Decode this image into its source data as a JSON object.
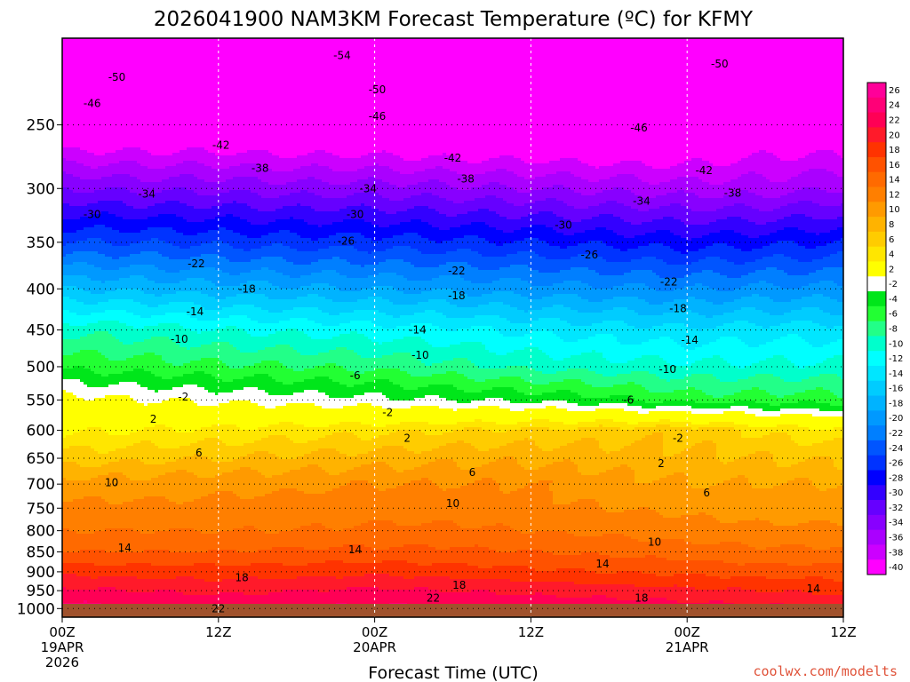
{
  "chart_data": {
    "type": "heatmap",
    "title": "2026041900 NAM3KM Forecast Temperature (ºC) for KFMY",
    "xlabel": "Forecast Time (UTC)",
    "ylabel": "",
    "credit": "coolwx.com/modelts",
    "x_range_hours": [
      0,
      60
    ],
    "y_range_hpa": [
      1025,
      195
    ],
    "x_ticks": [
      {
        "hour": 0,
        "lines": [
          "00Z",
          "19APR",
          "2026"
        ]
      },
      {
        "hour": 12,
        "lines": [
          "12Z"
        ]
      },
      {
        "hour": 24,
        "lines": [
          "00Z",
          "20APR"
        ]
      },
      {
        "hour": 36,
        "lines": [
          "12Z"
        ]
      },
      {
        "hour": 48,
        "lines": [
          "00Z",
          "21APR"
        ]
      },
      {
        "hour": 60,
        "lines": [
          "12Z"
        ]
      }
    ],
    "y_ticks": [
      250,
      300,
      350,
      400,
      450,
      500,
      550,
      600,
      650,
      700,
      750,
      800,
      850,
      900,
      950,
      1000
    ],
    "profile_pressure_hpa": [
      1015,
      1000,
      950,
      900,
      850,
      800,
      750,
      700,
      650,
      600,
      550,
      500,
      450,
      400,
      350,
      300,
      250,
      200
    ],
    "profile_times_hours": [
      0,
      6,
      12,
      18,
      24,
      30,
      36,
      42,
      48,
      54,
      60
    ],
    "temperature_c": [
      [
        23.0,
        23.0,
        20.5,
        17.5,
        14.0,
        12.0,
        10.5,
        9.0,
        5.0,
        1.5,
        -1.0,
        -6.5,
        -10.5,
        -18.0,
        -26.0,
        -34.0,
        -44.0,
        -52.0
      ],
      [
        22.5,
        22.0,
        20.0,
        17.0,
        14.0,
        12.0,
        10.5,
        9.0,
        5.5,
        2.0,
        -2.0,
        -7.0,
        -11.0,
        -18.5,
        -26.0,
        -34.5,
        -44.0,
        -52.5
      ],
      [
        22.0,
        21.5,
        19.5,
        17.0,
        14.0,
        12.0,
        10.5,
        9.5,
        6.0,
        2.5,
        -2.5,
        -7.5,
        -12.0,
        -19.0,
        -26.5,
        -34.5,
        -44.0,
        -53.0
      ],
      [
        22.5,
        22.0,
        20.0,
        17.0,
        14.5,
        12.0,
        11.0,
        9.5,
        6.5,
        3.0,
        -3.0,
        -8.0,
        -12.5,
        -19.5,
        -27.0,
        -35.0,
        -44.5,
        -53.0
      ],
      [
        23.0,
        22.5,
        20.5,
        17.5,
        14.5,
        12.5,
        11.0,
        10.0,
        7.0,
        3.5,
        -3.5,
        -8.5,
        -13.0,
        -20.0,
        -27.0,
        -35.0,
        -44.5,
        -53.0
      ],
      [
        22.5,
        22.0,
        20.0,
        17.0,
        14.5,
        12.5,
        11.0,
        10.0,
        7.5,
        4.0,
        -4.0,
        -9.5,
        -13.5,
        -20.5,
        -27.5,
        -35.5,
        -45.0,
        -53.5
      ],
      [
        22.0,
        21.5,
        19.5,
        16.5,
        14.0,
        12.0,
        10.5,
        10.0,
        7.5,
        4.5,
        -4.5,
        -10.5,
        -14.5,
        -21.0,
        -28.0,
        -36.0,
        -45.0,
        -53.5
      ],
      [
        22.5,
        21.5,
        19.0,
        16.0,
        13.5,
        11.5,
        10.0,
        9.0,
        7.0,
        5.0,
        -5.5,
        -11.0,
        -15.0,
        -21.5,
        -28.5,
        -36.5,
        -45.5,
        -53.0
      ],
      [
        22.0,
        21.0,
        18.5,
        15.5,
        13.0,
        11.0,
        9.5,
        8.0,
        6.5,
        5.5,
        -7.0,
        -11.5,
        -15.5,
        -22.0,
        -29.0,
        -37.0,
        -45.0,
        -52.0
      ],
      [
        21.5,
        20.5,
        18.0,
        15.0,
        12.5,
        10.5,
        9.0,
        8.0,
        6.0,
        3.5,
        -7.0,
        -11.5,
        -15.0,
        -21.5,
        -28.5,
        -37.0,
        -43.0,
        -51.0
      ],
      [
        21.0,
        20.0,
        17.5,
        15.0,
        12.5,
        10.5,
        9.0,
        8.0,
        5.5,
        2.5,
        -7.0,
        -11.5,
        -15.0,
        -21.5,
        -28.0,
        -36.0,
        -43.5,
        -51.5
      ]
    ],
    "colorbar": {
      "levels": [
        26,
        24,
        22,
        20,
        18,
        16,
        14,
        12,
        10,
        8,
        6,
        4,
        2,
        -2,
        -4,
        -6,
        -8,
        -10,
        -12,
        -14,
        -16,
        -18,
        -20,
        -22,
        -24,
        -26,
        -28,
        -30,
        -32,
        -34,
        -36,
        -38,
        -40
      ],
      "colors": [
        "#ff0099",
        "#ff0077",
        "#ff0055",
        "#ff1a2a",
        "#ff3300",
        "#ff5200",
        "#ff6a00",
        "#ff7f00",
        "#ff9a00",
        "#ffb300",
        "#ffcc00",
        "#ffe600",
        "#ffff00",
        "#ffffff",
        "#00e61a",
        "#22ff33",
        "#22ff88",
        "#00ffcc",
        "#00ffff",
        "#00e6ff",
        "#00ccff",
        "#00b3ff",
        "#0099ff",
        "#007fff",
        "#0055ff",
        "#0033ff",
        "#0000ff",
        "#3300ff",
        "#6600ff",
        "#8800ff",
        "#aa00ff",
        "#cc00ff",
        "#ff00ff"
      ]
    },
    "contour_labels": [
      {
        "value": "-54",
        "hour": 21.5,
        "hpa": 205
      },
      {
        "value": "-50",
        "hour": 4.2,
        "hpa": 218
      },
      {
        "value": "-50",
        "hour": 24.2,
        "hpa": 226
      },
      {
        "value": "-50",
        "hour": 50.5,
        "hpa": 210
      },
      {
        "value": "-46",
        "hour": 2.3,
        "hpa": 235
      },
      {
        "value": "-46",
        "hour": 24.2,
        "hpa": 244
      },
      {
        "value": "-46",
        "hour": 44.3,
        "hpa": 252
      },
      {
        "value": "-42",
        "hour": 12.2,
        "hpa": 265
      },
      {
        "value": "-42",
        "hour": 30.0,
        "hpa": 275
      },
      {
        "value": "-42",
        "hour": 49.3,
        "hpa": 285
      },
      {
        "value": "-38",
        "hour": 15.2,
        "hpa": 283
      },
      {
        "value": "-38",
        "hour": 31.0,
        "hpa": 292
      },
      {
        "value": "-38",
        "hour": 51.5,
        "hpa": 304
      },
      {
        "value": "-34",
        "hour": 6.5,
        "hpa": 305
      },
      {
        "value": "-34",
        "hour": 23.5,
        "hpa": 300
      },
      {
        "value": "-34",
        "hour": 44.5,
        "hpa": 311
      },
      {
        "value": "-30",
        "hour": 2.3,
        "hpa": 323
      },
      {
        "value": "-30",
        "hour": 22.5,
        "hpa": 323
      },
      {
        "value": "-30",
        "hour": 38.5,
        "hpa": 333
      },
      {
        "value": "-26",
        "hour": 21.8,
        "hpa": 349
      },
      {
        "value": "-26",
        "hour": 40.5,
        "hpa": 363
      },
      {
        "value": "-22",
        "hour": 10.3,
        "hpa": 372
      },
      {
        "value": "-22",
        "hour": 30.3,
        "hpa": 380
      },
      {
        "value": "-22",
        "hour": 46.6,
        "hpa": 392
      },
      {
        "value": "-18",
        "hour": 14.2,
        "hpa": 400
      },
      {
        "value": "-18",
        "hour": 30.3,
        "hpa": 408
      },
      {
        "value": "-18",
        "hour": 47.3,
        "hpa": 423
      },
      {
        "value": "-14",
        "hour": 10.2,
        "hpa": 427
      },
      {
        "value": "-14",
        "hour": 27.3,
        "hpa": 450
      },
      {
        "value": "-14",
        "hour": 48.2,
        "hpa": 463
      },
      {
        "value": "-10",
        "hour": 9.0,
        "hpa": 462
      },
      {
        "value": "-10",
        "hour": 27.5,
        "hpa": 484
      },
      {
        "value": "-10",
        "hour": 46.5,
        "hpa": 504
      },
      {
        "value": "-6",
        "hour": 22.5,
        "hpa": 513
      },
      {
        "value": "-6",
        "hour": 43.5,
        "hpa": 550
      },
      {
        "value": "-2",
        "hour": 9.3,
        "hpa": 545
      },
      {
        "value": "-2",
        "hour": 25.0,
        "hpa": 570
      },
      {
        "value": "-2",
        "hour": 47.3,
        "hpa": 614
      },
      {
        "value": "2",
        "hour": 7.0,
        "hpa": 581
      },
      {
        "value": "2",
        "hour": 26.5,
        "hpa": 614
      },
      {
        "value": "2",
        "hour": 46.0,
        "hpa": 660
      },
      {
        "value": "6",
        "hour": 10.5,
        "hpa": 640
      },
      {
        "value": "6",
        "hour": 31.5,
        "hpa": 677
      },
      {
        "value": "6",
        "hour": 49.5,
        "hpa": 718
      },
      {
        "value": "10",
        "hour": 3.8,
        "hpa": 697
      },
      {
        "value": "10",
        "hour": 30.0,
        "hpa": 740
      },
      {
        "value": "10",
        "hour": 45.5,
        "hpa": 827
      },
      {
        "value": "14",
        "hour": 4.8,
        "hpa": 840
      },
      {
        "value": "14",
        "hour": 22.5,
        "hpa": 845
      },
      {
        "value": "14",
        "hour": 41.5,
        "hpa": 880
      },
      {
        "value": "14",
        "hour": 57.7,
        "hpa": 945
      },
      {
        "value": "18",
        "hour": 13.8,
        "hpa": 915
      },
      {
        "value": "18",
        "hour": 30.5,
        "hpa": 935
      },
      {
        "value": "18",
        "hour": 44.5,
        "hpa": 970
      },
      {
        "value": "22",
        "hour": 12.0,
        "hpa": 1000
      },
      {
        "value": "22",
        "hour": 28.5,
        "hpa": 970
      }
    ]
  }
}
